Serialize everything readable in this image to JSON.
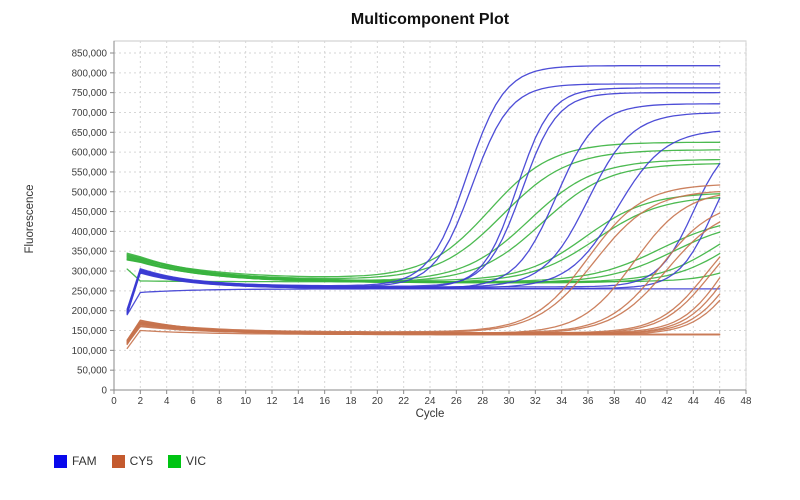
{
  "chart_data": {
    "type": "line",
    "title": "Multicomponent Plot",
    "xlabel": "Cycle",
    "ylabel": "Fluorescence",
    "xlim": [
      0,
      48
    ],
    "ylim": [
      0,
      850000
    ],
    "grid": "dashed light-gray at every labeled tick",
    "legend_position": "bottom-left",
    "x_ticks": [
      0,
      2,
      4,
      6,
      8,
      10,
      12,
      14,
      16,
      18,
      20,
      22,
      24,
      26,
      28,
      30,
      32,
      34,
      36,
      38,
      40,
      42,
      44,
      46,
      48
    ],
    "y_ticks": [
      0,
      50000,
      100000,
      150000,
      200000,
      250000,
      300000,
      350000,
      400000,
      450000,
      500000,
      550000,
      600000,
      650000,
      700000,
      750000,
      800000,
      850000
    ],
    "cycles_sampled": [
      1,
      46
    ],
    "legend": [
      {
        "label": "FAM",
        "dye": "FAM"
      },
      {
        "label": "CY5",
        "dye": "CY5"
      },
      {
        "label": "VIC",
        "dye": "VIC"
      }
    ],
    "dyes": {
      "FAM": {
        "line_color": "#3b3bd3",
        "swatch_color": "#0808ec",
        "baseline_band": "≈255,000–262,000"
      },
      "CY5": {
        "line_color": "#c7734e",
        "swatch_color": "#c45a2e",
        "baseline_band": "≈139,000–146,000"
      },
      "VIC": {
        "line_color": "#38b33e",
        "swatch_color": "#00c413",
        "baseline_band": "≈270,000–280,000"
      }
    },
    "transient_tau": {
      "FAM": 4,
      "CY5": 5,
      "VIC": 5.5
    },
    "model": "y(c)=baseline+(start2-baseline)*exp(-(c-2)/tau) for c>=2 (y(1)=start1, linear 1..2), plus (plateau-baseline)/(1+exp(-slope*(c-ct))) for amplified wells; c = cycle 1..46",
    "series": [
      {
        "dye": "VIC",
        "start1": 340000,
        "start2": 332000,
        "baseline": 280000,
        "plateau": 625000,
        "ct": 28.5,
        "slope": 0.42
      },
      {
        "dye": "VIC",
        "start1": 334000,
        "start2": 328000,
        "baseline": 276000,
        "plateau": 606000,
        "ct": 29.5,
        "slope": 0.4
      },
      {
        "dye": "VIC",
        "start1": 342000,
        "start2": 334000,
        "baseline": 272000,
        "plateau": 582000,
        "ct": 31.5,
        "slope": 0.4
      },
      {
        "dye": "VIC",
        "start1": 330000,
        "start2": 324000,
        "baseline": 270000,
        "plateau": 572000,
        "ct": 32.5,
        "slope": 0.4
      },
      {
        "dye": "VIC",
        "start1": 345000,
        "start2": 336000,
        "baseline": 274000,
        "plateau": 498000,
        "ct": 35.8,
        "slope": 0.42
      },
      {
        "dye": "VIC",
        "start1": 328000,
        "start2": 322000,
        "baseline": 270000,
        "plateau": 490000,
        "ct": 36.6,
        "slope": 0.4
      },
      {
        "dye": "VIC",
        "start1": 338000,
        "start2": 330000,
        "baseline": 272000,
        "plateau": 440000,
        "ct": 41.5,
        "slope": 0.38
      },
      {
        "dye": "VIC",
        "start1": 332000,
        "start2": 326000,
        "baseline": 270000,
        "plateau": 430000,
        "ct": 42.5,
        "slope": 0.4
      },
      {
        "dye": "VIC",
        "start1": 336000,
        "start2": 329000,
        "baseline": 272000,
        "plateau": 455000,
        "ct": 45.8,
        "slope": 0.45
      },
      {
        "dye": "VIC",
        "start1": 329000,
        "start2": 323000,
        "baseline": 270000,
        "plateau": 450000,
        "ct": 46.8,
        "slope": 0.45
      },
      {
        "dye": "VIC",
        "start1": 305000,
        "start2": 275000,
        "baseline": 273000,
        "plateau": 420000,
        "ct": 49.5,
        "slope": 0.5
      },
      {
        "dye": "FAM",
        "start1": 196000,
        "start2": 300000,
        "baseline": 262000,
        "plateau": 818000,
        "ct": 26.8,
        "slope": 0.7
      },
      {
        "dye": "FAM",
        "start1": 200000,
        "start2": 304000,
        "baseline": 260000,
        "plateau": 772000,
        "ct": 27.2,
        "slope": 0.7
      },
      {
        "dye": "FAM",
        "start1": 192000,
        "start2": 296000,
        "baseline": 258000,
        "plateau": 762000,
        "ct": 30.6,
        "slope": 0.78
      },
      {
        "dye": "FAM",
        "start1": 204000,
        "start2": 306000,
        "baseline": 261000,
        "plateau": 750000,
        "ct": 31.0,
        "slope": 0.75
      },
      {
        "dye": "FAM",
        "start1": 198000,
        "start2": 302000,
        "baseline": 256000,
        "plateau": 722000,
        "ct": 33.6,
        "slope": 0.65
      },
      {
        "dye": "FAM",
        "start1": 195000,
        "start2": 298000,
        "baseline": 259000,
        "plateau": 700000,
        "ct": 36.0,
        "slope": 0.6
      },
      {
        "dye": "FAM",
        "start1": 202000,
        "start2": 295000,
        "baseline": 257000,
        "plateau": 658000,
        "ct": 38.2,
        "slope": 0.55
      },
      {
        "dye": "FAM",
        "start1": 197000,
        "start2": 303000,
        "baseline": 260000,
        "plateau": 640000,
        "ct": 44.0,
        "slope": 0.75
      },
      {
        "dye": "FAM",
        "start1": 193000,
        "start2": 299000,
        "baseline": 256000,
        "plateau": 640000,
        "ct": 45.5,
        "slope": 0.75
      },
      {
        "dye": "FAM",
        "start1": 190000,
        "start2": 246000,
        "baseline": 255000,
        "plateau": 255000,
        "ct": null,
        "slope": null
      },
      {
        "dye": "CY5",
        "start1": 122000,
        "start2": 172000,
        "baseline": 146000,
        "plateau": 520000,
        "ct": 36.0,
        "slope": 0.48
      },
      {
        "dye": "CY5",
        "start1": 118000,
        "start2": 168000,
        "baseline": 144000,
        "plateau": 505000,
        "ct": 36.5,
        "slope": 0.46
      },
      {
        "dye": "CY5",
        "start1": 126000,
        "start2": 175000,
        "baseline": 142000,
        "plateau": 505000,
        "ct": 39.5,
        "slope": 0.5
      },
      {
        "dye": "CY5",
        "start1": 120000,
        "start2": 170000,
        "baseline": 144000,
        "plateau": 478000,
        "ct": 41.5,
        "slope": 0.5
      },
      {
        "dye": "CY5",
        "start1": 124000,
        "start2": 166000,
        "baseline": 142000,
        "plateau": 465000,
        "ct": 42.0,
        "slope": 0.48
      },
      {
        "dye": "CY5",
        "start1": 116000,
        "start2": 162000,
        "baseline": 144000,
        "plateau": 445000,
        "ct": 45.0,
        "slope": 0.55
      },
      {
        "dye": "CY5",
        "start1": 121000,
        "start2": 169000,
        "baseline": 142000,
        "plateau": 440000,
        "ct": 45.3,
        "slope": 0.55
      },
      {
        "dye": "CY5",
        "start1": 119000,
        "start2": 171000,
        "baseline": 144000,
        "plateau": 470000,
        "ct": 46.5,
        "slope": 0.6
      },
      {
        "dye": "CY5",
        "start1": 123000,
        "start2": 165000,
        "baseline": 142000,
        "plateau": 460000,
        "ct": 46.8,
        "slope": 0.6
      },
      {
        "dye": "CY5",
        "start1": 117000,
        "start2": 160000,
        "baseline": 142000,
        "plateau": 460000,
        "ct": 47.3,
        "slope": 0.6
      },
      {
        "dye": "CY5",
        "start1": 105000,
        "start2": 150000,
        "baseline": 140000,
        "plateau": 450000,
        "ct": 47.6,
        "slope": 0.6
      },
      {
        "dye": "CY5",
        "start1": 125000,
        "start2": 176000,
        "baseline": 141000,
        "plateau": 141000,
        "ct": null,
        "slope": null
      },
      {
        "dye": "CY5",
        "start1": 115000,
        "start2": 170000,
        "baseline": 139000,
        "plateau": 139000,
        "ct": null,
        "slope": null
      }
    ]
  },
  "style_colors": {
    "grid": "#d6d6d6",
    "plot_border": "#c9c9c9",
    "axis": "#8a8a8a",
    "tick_text": "#3c3c3c"
  }
}
